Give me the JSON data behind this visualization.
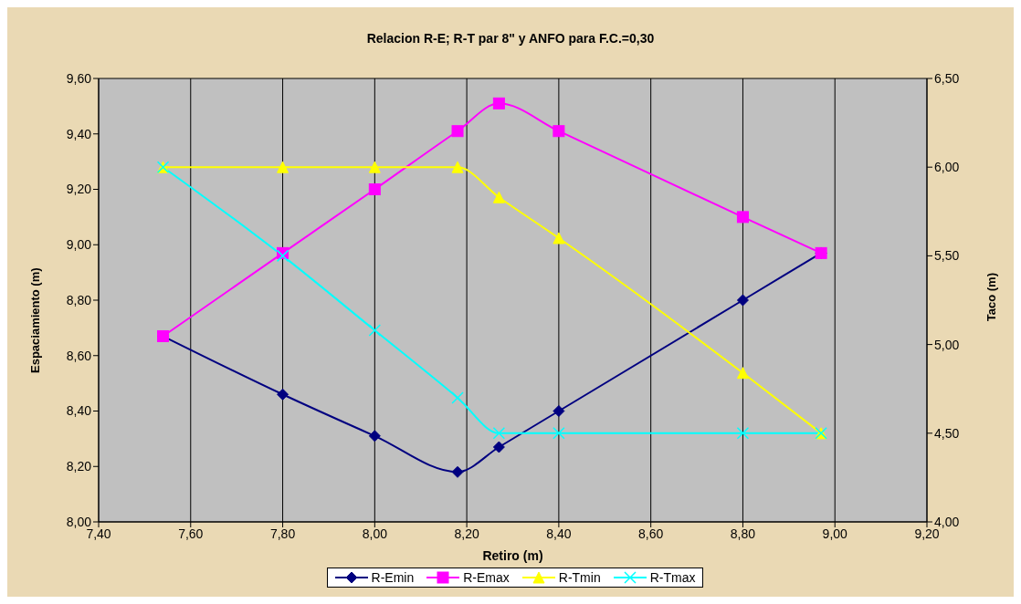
{
  "chart_data": {
    "type": "line",
    "title": "Relacion R-E; R-T par 8\" y ANFO para F.C.=0,30",
    "xlabel": "Retiro (m)",
    "ylabel": "Espaciamiento (m)",
    "y2label": "Taco (m)",
    "x": [
      7.54,
      7.8,
      8.0,
      8.18,
      8.27,
      8.4,
      8.8,
      8.97
    ],
    "series": [
      {
        "name": "R-Emin",
        "color": "#000080",
        "marker": "diamond",
        "values": [
          8.67,
          8.46,
          8.31,
          8.18,
          8.27,
          8.4,
          8.8,
          8.97
        ]
      },
      {
        "name": "R-Emax",
        "color": "#ff00ff",
        "marker": "square",
        "values": [
          8.67,
          8.97,
          9.2,
          9.41,
          9.51,
          9.41,
          9.1,
          8.97
        ]
      },
      {
        "name": "R-Tmin",
        "color": "#ffff00",
        "marker": "triangle",
        "axis": "y2",
        "values": [
          6.0,
          6.0,
          6.0,
          6.0,
          5.83,
          5.6,
          4.84,
          4.5
        ]
      },
      {
        "name": "R-Tmax",
        "color": "#00ffff",
        "marker": "cross",
        "axis": "y2",
        "values": [
          6.0,
          5.5,
          5.08,
          4.7,
          4.5,
          4.5,
          4.5,
          4.5
        ]
      }
    ],
    "xlim": [
      7.4,
      9.2
    ],
    "xticks": [
      {
        "value": 7.4,
        "label": "7,40"
      },
      {
        "value": 7.6,
        "label": "7,60"
      },
      {
        "value": 7.8,
        "label": "7,80"
      },
      {
        "value": 8.0,
        "label": "8,00"
      },
      {
        "value": 8.2,
        "label": "8,20"
      },
      {
        "value": 8.4,
        "label": "8,40"
      },
      {
        "value": 8.6,
        "label": "8,60"
      },
      {
        "value": 8.8,
        "label": "8,80"
      },
      {
        "value": 9.0,
        "label": "9,00"
      },
      {
        "value": 9.2,
        "label": "9,20"
      }
    ],
    "ylim": [
      8.0,
      9.6
    ],
    "yticks": [
      {
        "value": 8.0,
        "label": "8,00"
      },
      {
        "value": 8.2,
        "label": "8,20"
      },
      {
        "value": 8.4,
        "label": "8,40"
      },
      {
        "value": 8.6,
        "label": "8,60"
      },
      {
        "value": 8.8,
        "label": "8,80"
      },
      {
        "value": 9.0,
        "label": "9,00"
      },
      {
        "value": 9.2,
        "label": "9,20"
      },
      {
        "value": 9.4,
        "label": "9,40"
      },
      {
        "value": 9.6,
        "label": "9,60"
      }
    ],
    "y2lim": [
      4.0,
      6.5
    ],
    "y2ticks": [
      {
        "value": 4.0,
        "label": "4,00"
      },
      {
        "value": 4.5,
        "label": "4,50"
      },
      {
        "value": 5.0,
        "label": "5,00"
      },
      {
        "value": 5.5,
        "label": "5,50"
      },
      {
        "value": 6.0,
        "label": "6,00"
      },
      {
        "value": 6.5,
        "label": "6,50"
      }
    ],
    "grid": true,
    "legend": "bottom",
    "line_style": "solid"
  }
}
